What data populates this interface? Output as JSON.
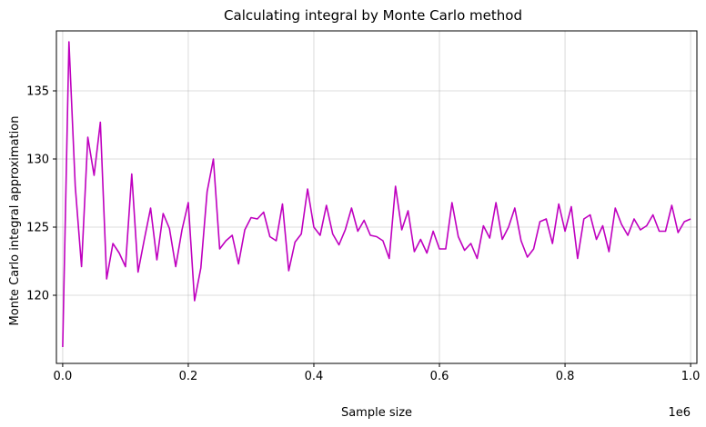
{
  "chart_data": {
    "type": "line",
    "title": "Calculating integral by Monte Carlo method",
    "xlabel": "Sample size",
    "ylabel": "Monte Carlo integral approximation",
    "x_offset_label": "1e6",
    "xlim": [
      -0.01,
      1.01
    ],
    "ylim": [
      115,
      139.4
    ],
    "xticks": [
      0.0,
      0.2,
      0.4,
      0.6,
      0.8,
      1.0
    ],
    "xtick_labels": [
      "0.0",
      "0.2",
      "0.4",
      "0.6",
      "0.8",
      "1.0"
    ],
    "yticks": [
      120,
      125,
      130,
      135
    ],
    "ytick_labels": [
      "120",
      "125",
      "130",
      "135"
    ],
    "grid": true,
    "line_color": "#bf00bf",
    "series": [
      {
        "x": [
          0.0,
          0.01,
          0.02,
          0.03,
          0.04,
          0.05,
          0.06,
          0.07,
          0.08,
          0.09,
          0.1,
          0.11,
          0.12,
          0.13,
          0.14,
          0.15,
          0.16,
          0.17,
          0.18,
          0.19,
          0.2,
          0.21,
          0.22,
          0.23,
          0.24,
          0.25,
          0.26,
          0.27,
          0.28,
          0.29,
          0.3,
          0.31,
          0.32,
          0.33,
          0.34,
          0.35,
          0.36,
          0.37,
          0.38,
          0.39,
          0.4,
          0.41,
          0.42,
          0.43,
          0.44,
          0.45,
          0.46,
          0.47,
          0.48,
          0.49,
          0.5,
          0.51,
          0.52,
          0.53,
          0.54,
          0.55,
          0.56,
          0.57,
          0.58,
          0.59,
          0.6,
          0.61,
          0.62,
          0.63,
          0.64,
          0.65,
          0.66,
          0.67,
          0.68,
          0.69,
          0.7,
          0.71,
          0.72,
          0.73,
          0.74,
          0.75,
          0.76,
          0.77,
          0.78,
          0.79,
          0.8,
          0.81,
          0.82,
          0.83,
          0.84,
          0.85,
          0.86,
          0.87,
          0.88,
          0.89,
          0.9,
          0.91,
          0.92,
          0.93,
          0.94,
          0.95,
          0.96,
          0.97,
          0.98,
          0.99,
          1.0
        ],
        "y": [
          116.2,
          138.6,
          128.0,
          122.1,
          131.6,
          128.8,
          132.7,
          121.2,
          123.8,
          123.1,
          122.1,
          128.9,
          121.7,
          124.1,
          126.4,
          122.6,
          126.0,
          124.9,
          122.1,
          124.8,
          126.8,
          119.6,
          122.0,
          127.6,
          130.0,
          123.4,
          124.0,
          124.4,
          122.3,
          124.8,
          125.7,
          125.6,
          126.1,
          124.3,
          124.0,
          126.7,
          121.8,
          123.9,
          124.5,
          127.8,
          125.0,
          124.4,
          126.6,
          124.5,
          123.7,
          124.8,
          126.4,
          124.7,
          125.5,
          124.4,
          124.3,
          124.0,
          122.7,
          128.0,
          124.8,
          126.2,
          123.2,
          124.1,
          123.1,
          124.7,
          123.4,
          123.4,
          126.8,
          124.3,
          123.3,
          123.8,
          122.7,
          125.1,
          124.2,
          126.8,
          124.1,
          125.0,
          126.4,
          124.0,
          122.8,
          123.4,
          125.4,
          125.6,
          123.8,
          126.7,
          124.7,
          126.5,
          122.7,
          125.6,
          125.9,
          124.1,
          125.1,
          123.2,
          126.4,
          125.2,
          124.4,
          125.6,
          124.8,
          125.1,
          125.9,
          124.7,
          124.7,
          126.6,
          124.6,
          125.4,
          125.6
        ]
      }
    ]
  }
}
